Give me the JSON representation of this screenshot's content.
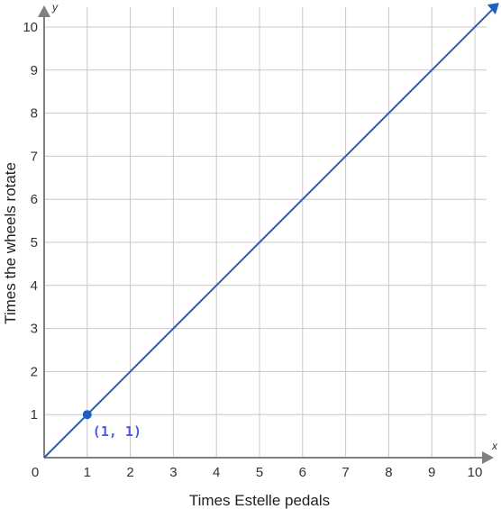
{
  "chart_data": {
    "type": "line",
    "xlabel": "Times Estelle pedals",
    "ylabel": "Times the wheels rotate",
    "x_axis_letter": "x",
    "y_axis_letter": "y",
    "xlim": [
      0,
      10.5
    ],
    "ylim": [
      0,
      10.5
    ],
    "x_ticks": [
      0,
      1,
      2,
      3,
      4,
      5,
      6,
      7,
      8,
      9,
      10
    ],
    "y_ticks": [
      1,
      2,
      3,
      4,
      5,
      6,
      7,
      8,
      9,
      10
    ],
    "grid": true,
    "series": [
      {
        "x": [
          0,
          10.5
        ],
        "y": [
          0,
          10.5
        ],
        "color": "#1f5fbf"
      }
    ],
    "points": [
      {
        "x": 1,
        "y": 1,
        "label": "(1, 1)",
        "color": "#1f5fbf",
        "label_color": "#4a5af0"
      }
    ],
    "axis_color": "#808080",
    "grid_color": "#c8c8c8"
  }
}
